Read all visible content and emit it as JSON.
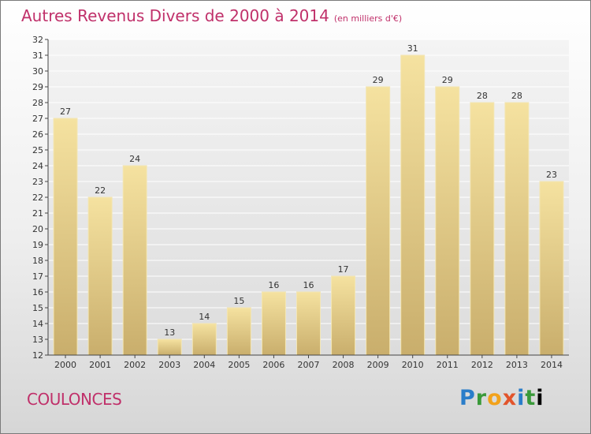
{
  "title": "Autres Revenus Divers de 2000 à 2014",
  "subtitle": "(en milliers d'€)",
  "town": "COULONCES",
  "logo": [
    "P",
    "r",
    "o",
    "x",
    "i",
    "t",
    "i"
  ],
  "colors": {
    "title": "#c0306a",
    "bar_light": "#f5e2a0",
    "bar_dark": "#c9ae6c",
    "grid": "#ffffff"
  },
  "chart_data": {
    "type": "bar",
    "categories": [
      "2000",
      "2001",
      "2002",
      "2003",
      "2004",
      "2005",
      "2006",
      "2007",
      "2008",
      "2009",
      "2010",
      "2011",
      "2012",
      "2013",
      "2014"
    ],
    "values": [
      27,
      22,
      24,
      13,
      14,
      15,
      16,
      16,
      17,
      29,
      31,
      29,
      28,
      28,
      23
    ],
    "title": "Autres Revenus Divers de 2000 à 2014",
    "subtitle": "(en milliers d'€)",
    "xlabel": "",
    "ylabel": "",
    "ylim": [
      12,
      32
    ],
    "yticks": [
      12,
      13,
      14,
      15,
      16,
      17,
      18,
      19,
      20,
      21,
      22,
      23,
      24,
      25,
      26,
      27,
      28,
      29,
      30,
      31,
      32
    ],
    "grid": true,
    "data_labels": true
  }
}
